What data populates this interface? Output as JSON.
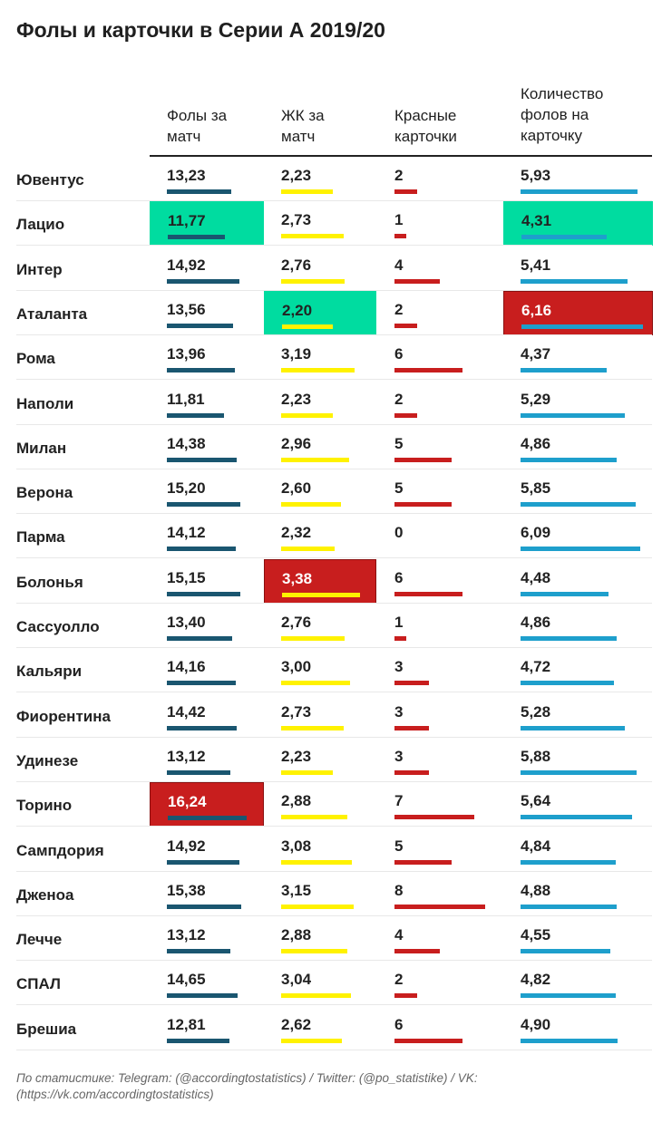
{
  "chart_data": {
    "type": "table",
    "title": "Фолы и карточки в Серии А 2019/20",
    "columns": [
      {
        "key": "fouls",
        "label": "Фолы за матч",
        "max": 16.24,
        "color": "#1a5670"
      },
      {
        "key": "yc",
        "label": "ЖК за матч",
        "max": 3.38,
        "color": "#fff200"
      },
      {
        "key": "rc",
        "label": "Красные карточки",
        "max": 8,
        "color": "#c81e1e"
      },
      {
        "key": "ratio",
        "label": "Количество фолов на карточку",
        "max": 6.16,
        "color": "#1e9fcc"
      }
    ],
    "highlight_colors": {
      "best": "#00dca0",
      "worst": "#c81e1e"
    },
    "rows": [
      {
        "team": "Ювентус",
        "fouls": "13,23",
        "yc": "2,23",
        "rc": "2",
        "ratio": "5,93",
        "hl": {}
      },
      {
        "team": "Лацио",
        "fouls": "11,77",
        "yc": "2,73",
        "rc": "1",
        "ratio": "4,31",
        "hl": {
          "fouls": "best",
          "ratio": "best"
        }
      },
      {
        "team": "Интер",
        "fouls": "14,92",
        "yc": "2,76",
        "rc": "4",
        "ratio": "5,41",
        "hl": {}
      },
      {
        "team": "Аталанта",
        "fouls": "13,56",
        "yc": "2,20",
        "rc": "2",
        "ratio": "6,16",
        "hl": {
          "yc": "best",
          "ratio": "worst"
        }
      },
      {
        "team": "Рома",
        "fouls": "13,96",
        "yc": "3,19",
        "rc": "6",
        "ratio": "4,37",
        "hl": {}
      },
      {
        "team": "Наполи",
        "fouls": "11,81",
        "yc": "2,23",
        "rc": "2",
        "ratio": "5,29",
        "hl": {}
      },
      {
        "team": "Милан",
        "fouls": "14,38",
        "yc": "2,96",
        "rc": "5",
        "ratio": "4,86",
        "hl": {}
      },
      {
        "team": "Верона",
        "fouls": "15,20",
        "yc": "2,60",
        "rc": "5",
        "ratio": "5,85",
        "hl": {}
      },
      {
        "team": "Парма",
        "fouls": "14,12",
        "yc": "2,32",
        "rc": "0",
        "ratio": "6,09",
        "hl": {}
      },
      {
        "team": "Болонья",
        "fouls": "15,15",
        "yc": "3,38",
        "rc": "6",
        "ratio": "4,48",
        "hl": {
          "yc": "worst"
        }
      },
      {
        "team": "Сассуолло",
        "fouls": "13,40",
        "yc": "2,76",
        "rc": "1",
        "ratio": "4,86",
        "hl": {}
      },
      {
        "team": "Кальяри",
        "fouls": "14,16",
        "yc": "3,00",
        "rc": "3",
        "ratio": "4,72",
        "hl": {}
      },
      {
        "team": "Фиорентина",
        "fouls": "14,42",
        "yc": "2,73",
        "rc": "3",
        "ratio": "5,28",
        "hl": {}
      },
      {
        "team": "Удинезе",
        "fouls": "13,12",
        "yc": "2,23",
        "rc": "3",
        "ratio": "5,88",
        "hl": {}
      },
      {
        "team": "Торино",
        "fouls": "16,24",
        "yc": "2,88",
        "rc": "7",
        "ratio": "5,64",
        "hl": {
          "fouls": "worst"
        }
      },
      {
        "team": "Сампдория",
        "fouls": "14,92",
        "yc": "3,08",
        "rc": "5",
        "ratio": "4,84",
        "hl": {}
      },
      {
        "team": "Дженоа",
        "fouls": "15,38",
        "yc": "3,15",
        "rc": "8",
        "ratio": "4,88",
        "hl": {}
      },
      {
        "team": "Лечче",
        "fouls": "13,12",
        "yc": "2,88",
        "rc": "4",
        "ratio": "4,55",
        "hl": {}
      },
      {
        "team": "СПАЛ",
        "fouls": "14,65",
        "yc": "3,04",
        "rc": "2",
        "ratio": "4,82",
        "hl": {}
      },
      {
        "team": "Брешиа",
        "fouls": "12,81",
        "yc": "2,62",
        "rc": "6",
        "ratio": "4,90",
        "hl": {}
      }
    ]
  },
  "headers": {
    "fouls": "Фолы за матч",
    "yc": "ЖК за матч",
    "rc": "Красные карточки",
    "ratio": "Количество фолов на карточку"
  },
  "title": "Фолы и карточки в Серии А 2019/20",
  "footer": "По статистике: Telegram: (@accordingtostatistics) / Twitter: (@po_statistike) / VK: (https://vk.com/accordingtostatistics)"
}
